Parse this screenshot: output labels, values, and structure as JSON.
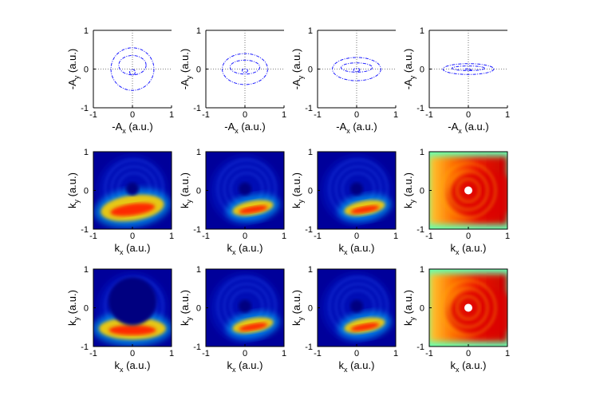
{
  "chart_data": [
    {
      "type": "line",
      "panel": "row1-col1",
      "xlabel": "-A",
      "xlabel_sub": "x",
      "xlabel_unit": " (a.u.)",
      "ylabel": "-A",
      "ylabel_sub": "y",
      "ylabel_unit": " (a.u.)",
      "xlim": [
        -1,
        1
      ],
      "ylim": [
        -1,
        1
      ],
      "xticks": [
        "-1",
        "0",
        "1"
      ],
      "yticks": [
        "-1",
        "0",
        "1"
      ],
      "series": [
        {
          "name": "outer loop",
          "cx": 0,
          "cy": 0,
          "rx": 0.55,
          "ry": 0.55
        },
        {
          "name": "middle loop",
          "cx": 0,
          "cy": 0.1,
          "rx": 0.35,
          "ry": 0.25
        },
        {
          "name": "inner loop",
          "cx": 0,
          "cy": -0.08,
          "rx": 0.07,
          "ry": 0.07
        }
      ]
    },
    {
      "type": "line",
      "panel": "row1-col2",
      "xlabel": "-A",
      "xlabel_sub": "x",
      "xlabel_unit": " (a.u.)",
      "ylabel": "-A",
      "ylabel_sub": "y",
      "ylabel_unit": " (a.u.)",
      "xlim": [
        -1,
        1
      ],
      "ylim": [
        -1,
        1
      ],
      "xticks": [
        "-1",
        "0",
        "1"
      ],
      "yticks": [
        "-1",
        "0",
        "1"
      ],
      "series": [
        {
          "name": "outer loop",
          "cx": 0,
          "cy": 0,
          "rx": 0.58,
          "ry": 0.4
        },
        {
          "name": "middle loop",
          "cx": 0,
          "cy": 0.05,
          "rx": 0.38,
          "ry": 0.18
        },
        {
          "name": "inner loop",
          "cx": 0,
          "cy": -0.04,
          "rx": 0.07,
          "ry": 0.05
        }
      ]
    },
    {
      "type": "line",
      "panel": "row1-col3",
      "xlabel": "-A",
      "xlabel_sub": "x",
      "xlabel_unit": " (a.u.)",
      "ylabel": "-A",
      "ylabel_sub": "y",
      "ylabel_unit": " (a.u.)",
      "xlim": [
        -1,
        1
      ],
      "ylim": [
        -1,
        1
      ],
      "xticks": [
        "-1",
        "0",
        "1"
      ],
      "yticks": [
        "-1",
        "0",
        "1"
      ],
      "series": [
        {
          "name": "outer loop",
          "cx": 0,
          "cy": 0,
          "rx": 0.62,
          "ry": 0.3
        },
        {
          "name": "middle loop",
          "cx": 0,
          "cy": 0.04,
          "rx": 0.4,
          "ry": 0.12
        },
        {
          "name": "inner loop",
          "cx": 0,
          "cy": -0.02,
          "rx": 0.08,
          "ry": 0.04
        }
      ]
    },
    {
      "type": "line",
      "panel": "row1-col4",
      "xlabel": "-A",
      "xlabel_sub": "x",
      "xlabel_unit": " (a.u.)",
      "ylabel": "-A",
      "ylabel_sub": "y",
      "ylabel_unit": " (a.u.)",
      "xlim": [
        -1,
        1
      ],
      "ylim": [
        -1,
        1
      ],
      "xticks": [
        "-1",
        "0",
        "1"
      ],
      "yticks": [
        "-1",
        "0",
        "1"
      ],
      "series": [
        {
          "name": "outer loop",
          "cx": 0,
          "cy": 0,
          "rx": 0.65,
          "ry": 0.14
        },
        {
          "name": "middle loop",
          "cx": 0,
          "cy": 0.02,
          "rx": 0.42,
          "ry": 0.06
        },
        {
          "name": "inner loop",
          "cx": 0,
          "cy": -0.01,
          "rx": 0.08,
          "ry": 0.02
        }
      ]
    },
    {
      "type": "heatmap",
      "panel": "row2-col1",
      "xlabel": "k",
      "xlabel_sub": "x",
      "xlabel_unit": " (a.u.)",
      "ylabel": "k",
      "ylabel_sub": "y",
      "ylabel_unit": " (a.u.)",
      "xlim": [
        -1,
        1
      ],
      "ylim": [
        -1,
        1
      ],
      "xticks": [
        "-1",
        "0",
        "1"
      ],
      "yticks": [
        "-1",
        "0",
        "1"
      ],
      "colormap": "jet",
      "background": "dark-blue",
      "crescent": "lower",
      "hole": [
        0,
        0
      ]
    },
    {
      "type": "heatmap",
      "panel": "row2-col2",
      "xlabel": "k",
      "xlabel_sub": "x",
      "xlabel_unit": " (a.u.)",
      "ylabel": "k",
      "ylabel_sub": "y",
      "ylabel_unit": " (a.u.)",
      "xlim": [
        -1,
        1
      ],
      "ylim": [
        -1,
        1
      ],
      "xticks": [
        "-1",
        "0",
        "1"
      ],
      "yticks": [
        "-1",
        "0",
        "1"
      ],
      "colormap": "jet",
      "background": "dark-blue",
      "crescent": "lower-right",
      "hole": [
        0,
        0
      ]
    },
    {
      "type": "heatmap",
      "panel": "row2-col3",
      "xlabel": "k",
      "xlabel_sub": "x",
      "xlabel_unit": " (a.u.)",
      "ylabel": "k",
      "ylabel_sub": "y",
      "ylabel_unit": " (a.u.)",
      "xlim": [
        -1,
        1
      ],
      "ylim": [
        -1,
        1
      ],
      "xticks": [
        "-1",
        "0",
        "1"
      ],
      "yticks": [
        "-1",
        "0",
        "1"
      ],
      "colormap": "jet",
      "background": "dark-blue",
      "crescent": "lower-right",
      "hole": [
        0,
        0
      ]
    },
    {
      "type": "heatmap",
      "panel": "row2-col4",
      "xlabel": "k",
      "xlabel_sub": "x",
      "xlabel_unit": " (a.u.)",
      "ylabel": "k",
      "ylabel_sub": "y",
      "ylabel_unit": " (a.u.)",
      "xlim": [
        -1,
        1
      ],
      "ylim": [
        -1,
        1
      ],
      "xticks": [
        "-1",
        "0",
        "1"
      ],
      "yticks": [
        "-1",
        "0",
        "1"
      ],
      "colormap": "jet",
      "background": "red-yellow",
      "crescent": "full",
      "hole": [
        0,
        0
      ]
    },
    {
      "type": "heatmap",
      "panel": "row3-col1",
      "xlabel": "k",
      "xlabel_sub": "x",
      "xlabel_unit": " (a.u.)",
      "ylabel": "k",
      "ylabel_sub": "y",
      "ylabel_unit": " (a.u.)",
      "xlim": [
        -1,
        1
      ],
      "ylim": [
        -1,
        1
      ],
      "xticks": [
        "-1",
        "0",
        "1"
      ],
      "yticks": [
        "-1",
        "0",
        "1"
      ],
      "colormap": "jet",
      "background": "dark-blue",
      "crescent": "lower-ring",
      "hole": [
        0,
        0
      ]
    },
    {
      "type": "heatmap",
      "panel": "row3-col2",
      "xlabel": "k",
      "xlabel_sub": "x",
      "xlabel_unit": " (a.u.)",
      "ylabel": "k",
      "ylabel_sub": "y",
      "ylabel_unit": " (a.u.)",
      "xlim": [
        -1,
        1
      ],
      "ylim": [
        -1,
        1
      ],
      "xticks": [
        "-1",
        "0",
        "1"
      ],
      "yticks": [
        "-1",
        "0",
        "1"
      ],
      "colormap": "jet",
      "background": "dark-blue",
      "crescent": "lower-right",
      "hole": [
        0,
        0
      ]
    },
    {
      "type": "heatmap",
      "panel": "row3-col3",
      "xlabel": "k",
      "xlabel_sub": "x",
      "xlabel_unit": " (a.u.)",
      "ylabel": "k",
      "ylabel_sub": "y",
      "ylabel_unit": " (a.u.)",
      "xlim": [
        -1,
        1
      ],
      "ylim": [
        -1,
        1
      ],
      "xticks": [
        "-1",
        "0",
        "1"
      ],
      "yticks": [
        "-1",
        "0",
        "1"
      ],
      "colormap": "jet",
      "background": "dark-blue",
      "crescent": "lower-right",
      "hole": [
        0,
        0
      ]
    },
    {
      "type": "heatmap",
      "panel": "row3-col4",
      "xlabel": "k",
      "xlabel_sub": "x",
      "xlabel_unit": " (a.u.)",
      "ylabel": "k",
      "ylabel_sub": "y",
      "ylabel_unit": " (a.u.)",
      "xlim": [
        -1,
        1
      ],
      "ylim": [
        -1,
        1
      ],
      "xticks": [
        "-1",
        "0",
        "1"
      ],
      "yticks": [
        "-1",
        "0",
        "1"
      ],
      "colormap": "jet",
      "background": "red-yellow",
      "crescent": "full",
      "hole": [
        0,
        0
      ]
    }
  ],
  "colors": {
    "trajectory": "#1a1aff",
    "deep_blue": "#00007f",
    "axis": "#000000",
    "guide": "#555555"
  }
}
